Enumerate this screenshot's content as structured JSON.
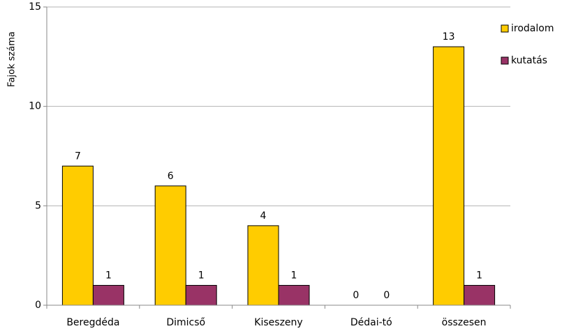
{
  "chart_data": {
    "type": "bar",
    "y_label": "Fajok száma",
    "categories": [
      "Beregdéda",
      "Dimicső",
      "Kiseszeny",
      "Dédai-tó",
      "összesen"
    ],
    "series": [
      {
        "name": "irodalom",
        "color": "#ffcc00",
        "values": [
          7,
          6,
          4,
          0,
          13
        ]
      },
      {
        "name": "kutatás",
        "color": "#993366",
        "values": [
          1,
          1,
          1,
          0,
          1
        ]
      }
    ],
    "ylim": [
      0,
      15
    ],
    "yticks": [
      0,
      5,
      10,
      15
    ],
    "grid": true,
    "legend": "right"
  }
}
